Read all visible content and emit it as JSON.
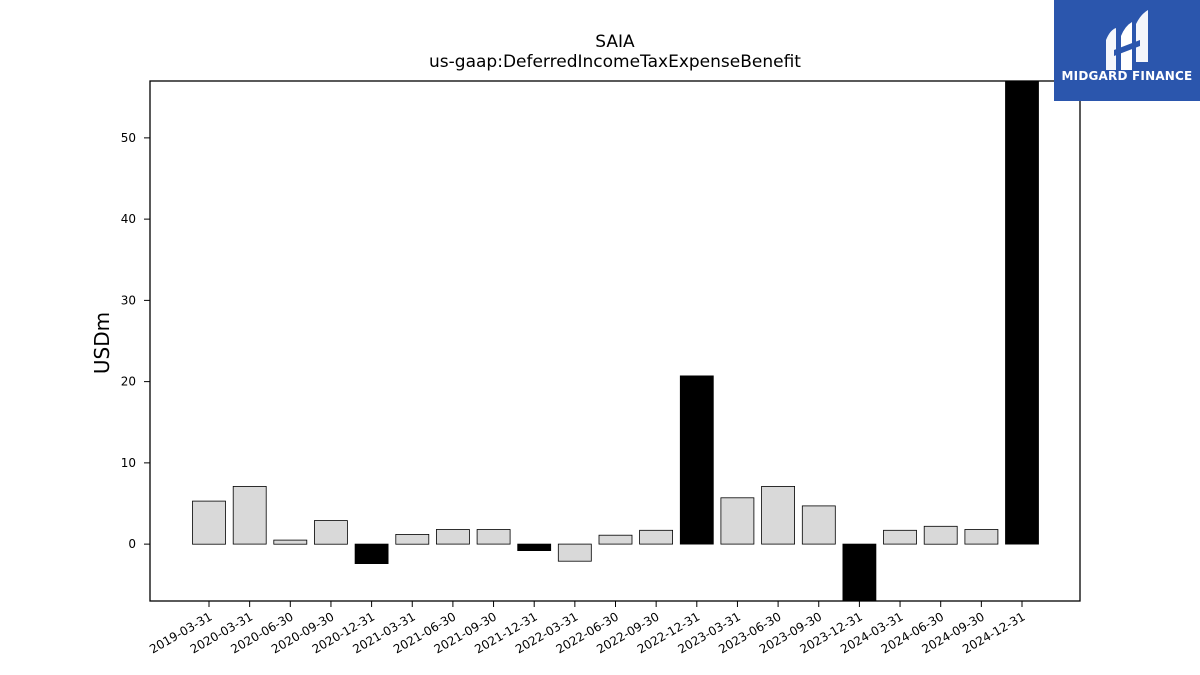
{
  "chart_data": {
    "type": "bar",
    "title": "SAIA",
    "subtitle": "us-gaap:DeferredIncomeTaxExpenseBenefit",
    "ylabel": "USDm",
    "xlabel": "",
    "ylim": [
      -7,
      57
    ],
    "yticks": [
      0,
      10,
      20,
      30,
      40,
      50
    ],
    "grid": false,
    "legend": "none",
    "categories": [
      "2019-03-31",
      "2020-03-31",
      "2020-06-30",
      "2020-09-30",
      "2020-12-31",
      "2021-03-31",
      "2021-06-30",
      "2021-09-30",
      "2021-12-31",
      "2022-03-31",
      "2022-06-30",
      "2022-09-30",
      "2022-12-31",
      "2023-03-31",
      "2023-06-30",
      "2023-09-30",
      "2023-12-31",
      "2024-03-31",
      "2024-06-30",
      "2024-09-30",
      "2024-12-31"
    ],
    "values": [
      5.3,
      7.1,
      0.5,
      2.9,
      -2.4,
      1.2,
      1.8,
      1.8,
      -0.8,
      -2.1,
      1.1,
      1.7,
      20.7,
      5.7,
      7.1,
      4.7,
      -7.5,
      1.7,
      2.2,
      1.8,
      58.0
    ],
    "annual_flags": [
      false,
      false,
      false,
      false,
      true,
      false,
      false,
      false,
      true,
      false,
      false,
      false,
      true,
      false,
      false,
      false,
      true,
      false,
      false,
      false,
      true
    ],
    "colors": {
      "quarterly": "#d9d9d9",
      "annual": "#000000",
      "edge": "#000000"
    }
  },
  "logo": {
    "text": "MIDGARD FINANCE",
    "background": "#2b56ad"
  }
}
